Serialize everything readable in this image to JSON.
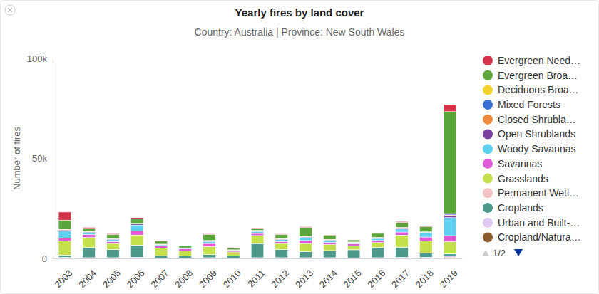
{
  "chart_data": {
    "type": "bar",
    "title": "Yearly fires by land cover",
    "subtitle": "Country: Australia | Province: New South Wales",
    "y_label": "Number of fires",
    "categories": [
      "2003",
      "2004",
      "2005",
      "2006",
      "2007",
      "2008",
      "2009",
      "2010",
      "2011",
      "2012",
      "2013",
      "2014",
      "2015",
      "2016",
      "2017",
      "2018",
      "2019"
    ],
    "series": [
      {
        "name": "Evergreen Need…",
        "color": "#d6334a",
        "values": [
          4000,
          500,
          300,
          700,
          200,
          100,
          200,
          100,
          300,
          200,
          300,
          200,
          100,
          200,
          400,
          300,
          3500
        ]
      },
      {
        "name": "Evergreen Broa…",
        "color": "#5aa63a",
        "values": [
          4500,
          1500,
          2000,
          2000,
          1500,
          1000,
          3000,
          1000,
          1000,
          2000,
          4500,
          2000,
          1000,
          2000,
          2500,
          2500,
          51000
        ]
      },
      {
        "name": "Deciduous Broa…",
        "color": "#f5d130",
        "values": [
          200,
          100,
          100,
          200,
          100,
          50,
          100,
          50,
          100,
          100,
          100,
          100,
          100,
          100,
          100,
          100,
          300
        ]
      },
      {
        "name": "Mixed Forests",
        "color": "#3a6fd6",
        "values": [
          150,
          100,
          100,
          150,
          50,
          50,
          100,
          50,
          100,
          100,
          100,
          100,
          50,
          100,
          100,
          100,
          400
        ]
      },
      {
        "name": "Closed Shrubla…",
        "color": "#ef8a3a",
        "values": [
          100,
          50,
          50,
          100,
          50,
          30,
          50,
          30,
          50,
          50,
          50,
          50,
          50,
          50,
          50,
          50,
          300
        ]
      },
      {
        "name": "Open Shrublands",
        "color": "#7b3fa0",
        "values": [
          500,
          300,
          300,
          500,
          200,
          150,
          300,
          150,
          300,
          300,
          300,
          300,
          200,
          300,
          600,
          400,
          1000
        ]
      },
      {
        "name": "Woody Savannas",
        "color": "#5fd0ef",
        "values": [
          3500,
          1000,
          1000,
          3000,
          500,
          300,
          1000,
          300,
          1000,
          1000,
          1500,
          1000,
          500,
          1000,
          1500,
          2000,
          9000
        ]
      },
      {
        "name": "Savannas",
        "color": "#e05ad6",
        "values": [
          1500,
          1500,
          1000,
          2000,
          1000,
          1000,
          1500,
          500,
          1000,
          1000,
          1500,
          1000,
          1000,
          1000,
          1500,
          2000,
          3000
        ]
      },
      {
        "name": "Grasslands",
        "color": "#c4e04a",
        "values": [
          7000,
          5000,
          3000,
          5000,
          4000,
          2500,
          4000,
          2000,
          4000,
          3000,
          4000,
          3000,
          2000,
          2500,
          6000,
          6000,
          6000
        ]
      },
      {
        "name": "Permanent Wetl…",
        "color": "#f4c2c2",
        "values": [
          100,
          50,
          50,
          100,
          50,
          30,
          50,
          30,
          50,
          50,
          50,
          50,
          50,
          50,
          50,
          50,
          200
        ]
      },
      {
        "name": "Croplands",
        "color": "#4d9a8c",
        "values": [
          1000,
          5000,
          4000,
          6000,
          1000,
          1000,
          1500,
          1000,
          7000,
          4000,
          3000,
          3500,
          4000,
          5000,
          5000,
          2000,
          1000
        ]
      },
      {
        "name": "Urban and Built-…",
        "color": "#dcc8f0",
        "values": [
          300,
          200,
          200,
          300,
          100,
          100,
          200,
          100,
          200,
          200,
          200,
          200,
          150,
          200,
          300,
          300,
          600
        ]
      },
      {
        "name": "Cropland/Natura…",
        "color": "#8b5a2b",
        "values": [
          300,
          200,
          200,
          300,
          100,
          100,
          200,
          100,
          200,
          200,
          200,
          200,
          150,
          200,
          300,
          300,
          600
        ]
      }
    ],
    "ylim": [
      0,
      100000
    ],
    "yticks": [
      0,
      {
        "value": 50000,
        "label": "50k"
      },
      {
        "value": 100000,
        "label": "100k"
      }
    ],
    "stacked": true,
    "grid": false,
    "legend": "right",
    "annotations": [
      "1/2"
    ]
  }
}
